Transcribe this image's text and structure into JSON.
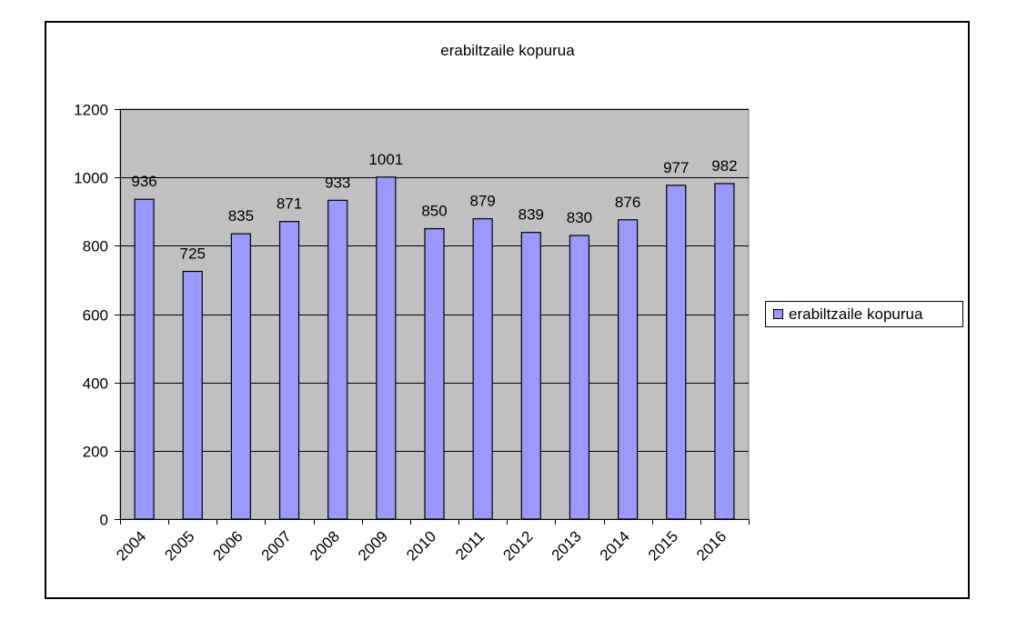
{
  "chart_data": {
    "type": "bar",
    "title": "erabiltzaile kopurua",
    "categories": [
      "2004",
      "2005",
      "2006",
      "2007",
      "2008",
      "2009",
      "2010",
      "2011",
      "2012",
      "2013",
      "2014",
      "2015",
      "2016"
    ],
    "series": [
      {
        "name": "erabiltzaile kopurua",
        "values": [
          936,
          725,
          835,
          871,
          933,
          1001,
          850,
          879,
          839,
          830,
          876,
          977,
          982
        ]
      }
    ],
    "ylim": [
      0,
      1200
    ],
    "yticks": [
      0,
      200,
      400,
      600,
      800,
      1000,
      1200
    ],
    "grid": true,
    "legend_position": "right",
    "colors": {
      "bar": "#9999ff",
      "plot_bg": "#c0c0c0",
      "grid": "#000000"
    }
  }
}
